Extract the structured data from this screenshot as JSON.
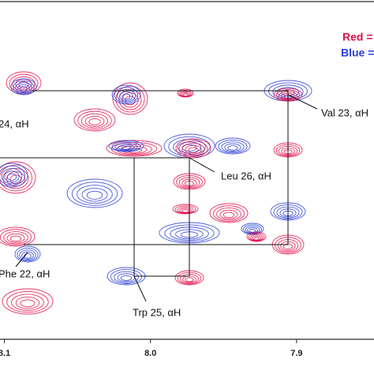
{
  "chart_data": {
    "type": "contour",
    "legend": [
      {
        "name": "Red =",
        "color": "#e0104a"
      },
      {
        "name": "Blue =",
        "color": "#2a3fd6"
      }
    ],
    "xlim": [
      8.103,
      7.847
    ],
    "xticks": [
      {
        "value": 8.1,
        "label": "8.1"
      },
      {
        "value": 8.0,
        "label": "8.0"
      },
      7.9
    ],
    "annotations": [
      "Val 23, αH",
      "24, αH",
      "Leu 26, αH",
      "Phe 22, αH",
      "Trp 25, αH"
    ]
  }
}
